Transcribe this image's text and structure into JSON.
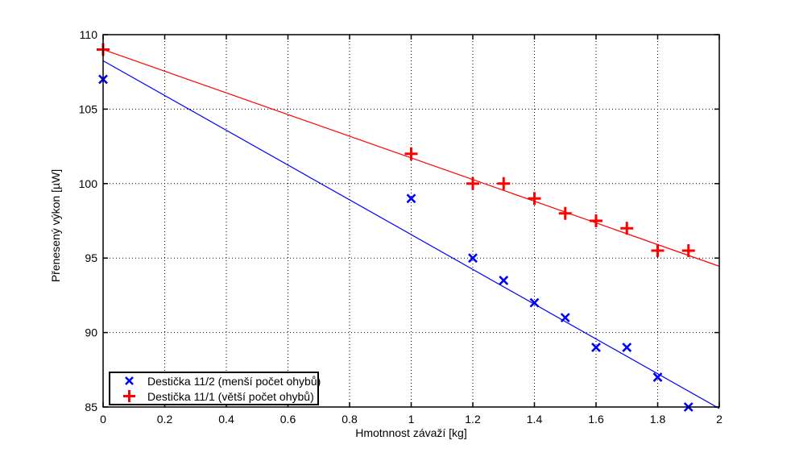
{
  "figure": {
    "background_color": "#ffffff",
    "axes_color": "#000000",
    "grid_style": "dotted"
  },
  "chart_data": {
    "type": "scatter",
    "title": "",
    "xlabel": "Hmotnnost závaží [kg]",
    "ylabel": "Přenesený výkon [µW]",
    "xlim": [
      0,
      2
    ],
    "ylim": [
      85,
      110
    ],
    "xticks": [
      0,
      0.2,
      0.4,
      0.6,
      0.8,
      1,
      1.2,
      1.4,
      1.6,
      1.8,
      2
    ],
    "xtick_labels": [
      "0",
      "0.2",
      "0.4",
      "0.6",
      "0.8",
      "1",
      "1.2",
      "1.4",
      "1.6",
      "1.8",
      "2"
    ],
    "yticks": [
      85,
      90,
      95,
      100,
      105,
      110
    ],
    "ytick_labels": [
      "85",
      "90",
      "95",
      "100",
      "105",
      "110"
    ],
    "grid": true,
    "legend_position": "bottom-left-inside",
    "series": [
      {
        "name": "Destička 11/2 (menší počet ohybů)",
        "marker": "x",
        "color": "#0000ff",
        "points": [
          [
            0,
            107
          ],
          [
            1,
            99
          ],
          [
            1.2,
            95
          ],
          [
            1.3,
            93.5
          ],
          [
            1.4,
            92
          ],
          [
            1.5,
            91
          ],
          [
            1.6,
            89
          ],
          [
            1.7,
            89
          ],
          [
            1.8,
            87
          ],
          [
            1.9,
            85
          ]
        ],
        "fit_line": {
          "x": [
            0,
            2
          ],
          "y": [
            108.25,
            84.9
          ]
        }
      },
      {
        "name": "Destička 11/1 (větší počet ohybů)",
        "marker": "+",
        "color": "#ff0000",
        "points": [
          [
            0,
            109
          ],
          [
            1,
            102
          ],
          [
            1.2,
            100
          ],
          [
            1.3,
            100
          ],
          [
            1.4,
            99
          ],
          [
            1.5,
            98
          ],
          [
            1.6,
            97.5
          ],
          [
            1.7,
            97
          ],
          [
            1.8,
            95.5
          ],
          [
            1.9,
            95.5
          ]
        ],
        "fit_line": {
          "x": [
            0,
            2
          ],
          "y": [
            109.0,
            94.45
          ]
        }
      }
    ]
  },
  "legend": {
    "items": [
      {
        "label": "Destička 11/2 (menší počet ohybů)",
        "marker": "x",
        "color": "#0000ff"
      },
      {
        "label": "Destička 11/1 (větší počet ohybů)",
        "marker": "+",
        "color": "#ff0000"
      }
    ]
  }
}
